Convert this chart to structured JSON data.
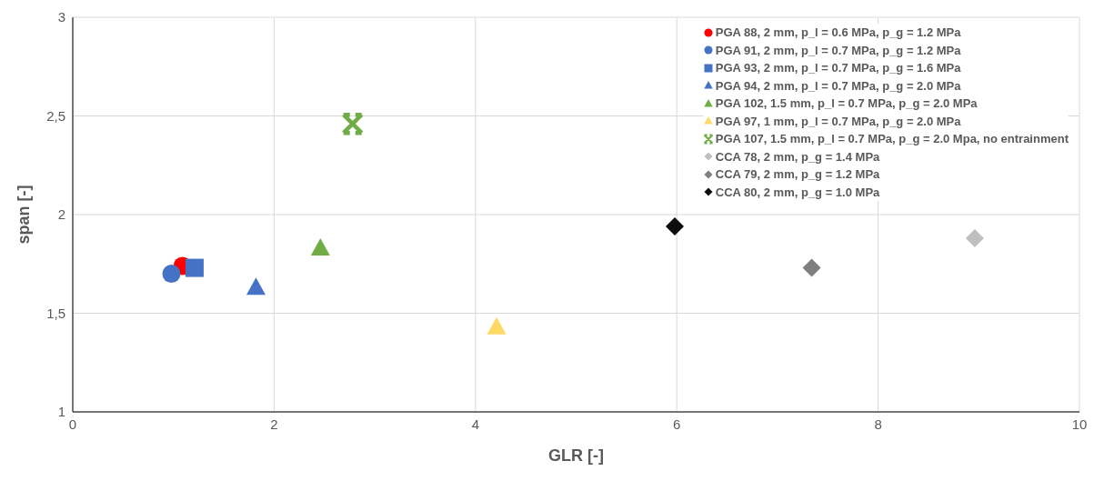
{
  "chart_data": {
    "type": "scatter",
    "xlabel": "GLR [-]",
    "ylabel": "span [-]",
    "xlim": [
      0,
      10
    ],
    "xticks": [
      0,
      2,
      4,
      6,
      8,
      10
    ],
    "ylim": [
      1,
      3
    ],
    "yticks": [
      1,
      {
        "value": 1.5,
        "label": "1,5"
      },
      2,
      {
        "value": 2.5,
        "label": "2,5"
      },
      3
    ],
    "grid": true,
    "legend": "top right",
    "series": [
      {
        "name": "PGA 88, 2 mm, p_l = 0.6 MPa, p_g = 1.2 MPa",
        "color": "#ff0000",
        "marker": "circle",
        "x": [
          1.09
        ],
        "values": [
          1.74
        ]
      },
      {
        "name": "PGA 91, 2 mm, p_l = 0.7 MPa, p_g = 1.2 MPa",
        "color": "#4472c4",
        "marker": "circle",
        "x": [
          0.98
        ],
        "values": [
          1.7
        ]
      },
      {
        "name": "PGA 93, 2 mm, p_l = 0.7 MPa, p_g = 1.6 MPa",
        "color": "#4472c4",
        "marker": "square",
        "x": [
          1.21
        ],
        "values": [
          1.73
        ]
      },
      {
        "name": "PGA 94, 2 mm, p_l = 0.7 MPa, p_g = 2.0 MPa",
        "color": "#4472c4",
        "marker": "triangle",
        "x": [
          1.82
        ],
        "values": [
          1.63
        ]
      },
      {
        "name": "PGA 102, 1.5 mm, p_l = 0.7 MPa, p_g = 2.0 MPa",
        "color": "#70ad47",
        "marker": "triangle",
        "x": [
          2.46
        ],
        "values": [
          1.83
        ]
      },
      {
        "name": "PGA 97, 1 mm, p_l = 0.7 MPa, p_g = 2.0 MPa",
        "color": "#ffd966",
        "marker": "triangle",
        "x": [
          4.21
        ],
        "values": [
          1.43
        ]
      },
      {
        "name": "PGA 107, 1.5 mm, p_l = 0.7 MPa, p_g = 2.0 Mpa, no entrainment",
        "color": "#70ad47",
        "marker": "cross",
        "x": [
          2.78
        ],
        "values": [
          2.46
        ]
      },
      {
        "name": "CCA 78, 2 mm, p_g = 1.4 MPa",
        "color": "#bfbfbf",
        "marker": "diamond",
        "x": [
          8.96
        ],
        "values": [
          1.88
        ]
      },
      {
        "name": "CCA 79, 2 mm, p_g = 1.2 MPa",
        "color": "#7f7f7f",
        "marker": "diamond",
        "x": [
          7.34
        ],
        "values": [
          1.73
        ]
      },
      {
        "name": "CCA 80, 2 mm, p_g = 1.0 MPa",
        "color": "#0d0d0d",
        "marker": "diamond",
        "x": [
          5.98
        ],
        "values": [
          1.94
        ]
      }
    ]
  }
}
